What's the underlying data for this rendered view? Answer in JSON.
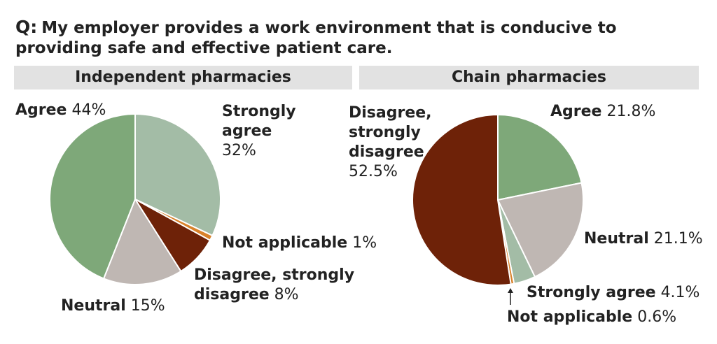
{
  "question": {
    "prefix": "Q:",
    "text": "My employer provides a work environment that is conducive to providing safe and effective patient care."
  },
  "chart_data": [
    {
      "type": "pie",
      "title": "Independent pharmacies",
      "slices": [
        {
          "label": "Strongly agree",
          "value": 32,
          "display": "32%",
          "color": "#a3bca6"
        },
        {
          "label": "Not applicable",
          "value": 1,
          "display": "1%",
          "color": "#d9822b"
        },
        {
          "label": "Disagree, strongly disagree",
          "value": 8,
          "display": "8%",
          "color": "#6e2208"
        },
        {
          "label": "Neutral",
          "value": 15,
          "display": "15%",
          "color": "#bfb7b3"
        },
        {
          "label": "Agree",
          "value": 44,
          "display": "44%",
          "color": "#7ea879"
        }
      ]
    },
    {
      "type": "pie",
      "title": "Chain pharmacies",
      "slices": [
        {
          "label": "Agree",
          "value": 21.8,
          "display": "21.8%",
          "color": "#7ea879"
        },
        {
          "label": "Neutral",
          "value": 21.1,
          "display": "21.1%",
          "color": "#bfb7b3"
        },
        {
          "label": "Strongly agree",
          "value": 4.1,
          "display": "4.1%",
          "color": "#a3bca6"
        },
        {
          "label": "Not applicable",
          "value": 0.6,
          "display": "0.6%",
          "color": "#d9822b"
        },
        {
          "label": "Disagree, strongly disagree",
          "value": 52.5,
          "display": "52.5%",
          "color": "#6e2208"
        }
      ]
    }
  ],
  "labels": {
    "left": {
      "agree": {
        "name": "Agree",
        "pct": "44%"
      },
      "strongly_agree": {
        "name_line1": "Strongly",
        "name_line2": "agree",
        "pct": "32%"
      },
      "not_applicable": {
        "name": "Not applicable",
        "pct": "1%"
      },
      "disagree": {
        "name_line1": "Disagree, strongly",
        "name_line2": "disagree",
        "pct": "8%"
      },
      "neutral": {
        "name": "Neutral",
        "pct": "15%"
      }
    },
    "right": {
      "disagree": {
        "name_line1": "Disagree,",
        "name_line2": "strongly",
        "name_line3": "disagree",
        "pct": "52.5%"
      },
      "agree": {
        "name": "Agree",
        "pct": "21.8%"
      },
      "neutral": {
        "name": "Neutral",
        "pct": "21.1%"
      },
      "strongly_agree": {
        "name": "Strongly agree",
        "pct": "4.1%"
      },
      "not_applicable": {
        "name": "Not applicable",
        "pct": "0.6%"
      }
    }
  }
}
